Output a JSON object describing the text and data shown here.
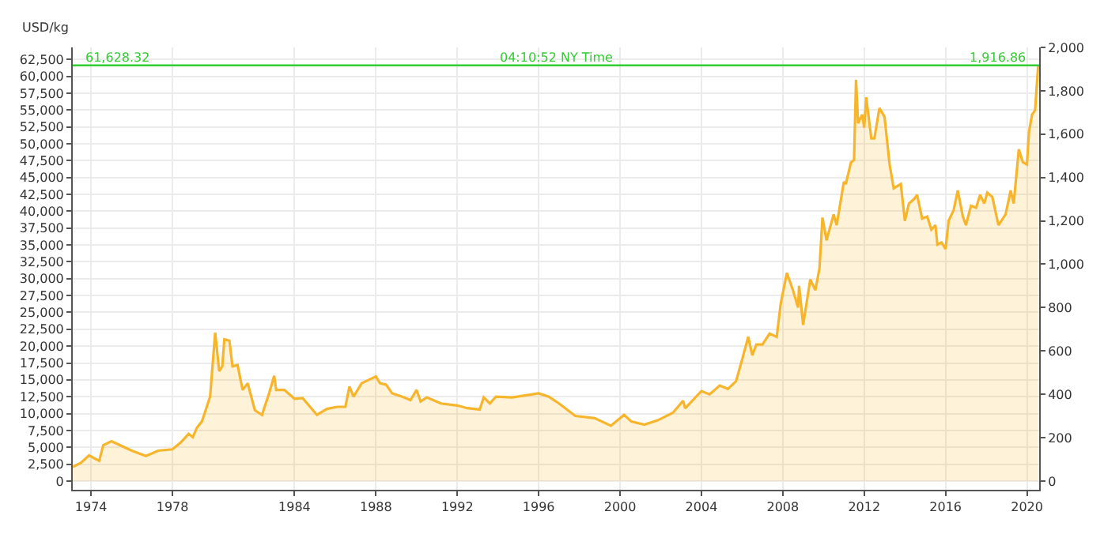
{
  "chart_data": {
    "type": "area",
    "ylabel": "USD/kg",
    "annotations": [
      "04:10:52 NY Time",
      "1,916.86"
    ],
    "x": [
      1973.1,
      1973.5,
      1973.9,
      1974.2,
      1974.4,
      1974.6,
      1974.8,
      1975.0,
      1975.5,
      1976.0,
      1976.7,
      1977.3,
      1978.0,
      1978.4,
      1978.8,
      1979.0,
      1979.2,
      1979.45,
      1979.85,
      1980.1,
      1980.3,
      1980.45,
      1980.55,
      1980.8,
      1980.95,
      1981.2,
      1981.45,
      1981.7,
      1982.05,
      1982.4,
      1982.75,
      1983.0,
      1983.1,
      1983.5,
      1984.0,
      1984.4,
      1985.1,
      1985.6,
      1986.1,
      1986.5,
      1986.7,
      1986.9,
      1987.3,
      1988.0,
      1988.2,
      1988.5,
      1988.8,
      1989.3,
      1989.7,
      1990.0,
      1990.2,
      1990.5,
      1991.2,
      1992.0,
      1992.5,
      1993.1,
      1993.3,
      1993.6,
      1993.9,
      1994.7,
      1996.0,
      1996.5,
      1997.0,
      1997.8,
      1998.75,
      1999.55,
      2000.2,
      2000.55,
      2001.2,
      2001.85,
      2002.6,
      2003.1,
      2003.2,
      2004.0,
      2004.4,
      2004.9,
      2005.3,
      2005.7,
      2006.0,
      2006.3,
      2006.5,
      2006.7,
      2007.0,
      2007.35,
      2007.7,
      2007.9,
      2008.2,
      2008.5,
      2008.75,
      2008.8,
      2009.0,
      2009.35,
      2009.6,
      2009.8,
      2009.95,
      2010.15,
      2010.5,
      2010.65,
      2011.0,
      2011.1,
      2011.35,
      2011.5,
      2011.6,
      2011.7,
      2011.9,
      2012.0,
      2012.1,
      2012.35,
      2012.5,
      2012.75,
      2013.0,
      2013.25,
      2013.45,
      2013.8,
      2014.0,
      2014.2,
      2014.45,
      2014.6,
      2014.85,
      2015.1,
      2015.3,
      2015.5,
      2015.6,
      2015.8,
      2016.0,
      2016.15,
      2016.4,
      2016.6,
      2016.85,
      2017.0,
      2017.25,
      2017.5,
      2017.7,
      2017.9,
      2018.05,
      2018.3,
      2018.6,
      2018.95,
      2019.2,
      2019.35,
      2019.6,
      2019.8,
      2020.0,
      2020.1,
      2020.25,
      2020.4,
      2020.55
    ],
    "series": [
      {
        "color": "#f7b52c",
        "values": [
          2100,
          2700,
          3800,
          3300,
          3000,
          5300,
          5600,
          5900,
          5200,
          4500,
          3700,
          4500,
          4700,
          5700,
          7000,
          6500,
          7900,
          8850,
          12500,
          22000,
          16300,
          17000,
          21000,
          20800,
          17000,
          17200,
          13500,
          14500,
          10500,
          9800,
          13000,
          15600,
          13500,
          13500,
          12200,
          12300,
          9800,
          10700,
          11000,
          11000,
          14000,
          12500,
          14500,
          15500,
          14500,
          14300,
          13000,
          12500,
          12000,
          13500,
          11800,
          12400,
          11500,
          11200,
          10800,
          10600,
          12400,
          11500,
          12500,
          12400,
          13000,
          12500,
          11500,
          9650,
          9320,
          8200,
          9810,
          8840,
          8360,
          9000,
          10130,
          11900,
          10770,
          13340,
          12860,
          14150,
          13660,
          14790,
          18000,
          21380,
          18650,
          20250,
          20250,
          21860,
          21380,
          26360,
          30860,
          28290,
          25720,
          28930,
          23150,
          29900,
          28290,
          31500,
          39060,
          35690,
          39540,
          37940,
          44370,
          44050,
          47260,
          47580,
          59480,
          53050,
          54330,
          52400,
          56900,
          50800,
          50800,
          55300,
          54010,
          46940,
          43400,
          44050,
          38580,
          41150,
          41800,
          42440,
          38900,
          39220,
          37290,
          37940,
          35040,
          35370,
          34400,
          38580,
          40190,
          43080,
          39220,
          37940,
          40830,
          40510,
          42440,
          41150,
          42760,
          42120,
          37940,
          39540,
          43080,
          41150,
          49190,
          47260,
          46940,
          51760,
          54330,
          54980,
          61600
        ]
      }
    ],
    "xlim": [
      1973.1,
      2020.6
    ],
    "xticks": [
      1974,
      1978,
      1984,
      1988,
      1992,
      1996,
      2000,
      2004,
      2008,
      2012,
      2016,
      2020
    ],
    "ylim": [
      -1300,
      64300
    ],
    "yticks": [
      {
        "value": 0,
        "label": "0"
      },
      {
        "value": 2500,
        "label": "2,500"
      },
      {
        "value": 5000,
        "label": "5,000"
      },
      {
        "value": 7500,
        "label": "7,500"
      },
      {
        "value": 10000,
        "label": "10,000"
      },
      {
        "value": 12500,
        "label": "12,500"
      },
      {
        "value": 15000,
        "label": "15,000"
      },
      {
        "value": 17500,
        "label": "17,500"
      },
      {
        "value": 20000,
        "label": "20,000"
      },
      {
        "value": 22500,
        "label": "22,500"
      },
      {
        "value": 25000,
        "label": "25,000"
      },
      {
        "value": 27500,
        "label": "27,500"
      },
      {
        "value": 30000,
        "label": "30,000"
      },
      {
        "value": 32500,
        "label": "32,500"
      },
      {
        "value": 35000,
        "label": "35,000"
      },
      {
        "value": 37500,
        "label": "37,500"
      },
      {
        "value": 40000,
        "label": "40,000"
      },
      {
        "value": 42500,
        "label": "42,500"
      },
      {
        "value": 45000,
        "label": "45,000"
      },
      {
        "value": 47500,
        "label": "47,500"
      },
      {
        "value": 50000,
        "label": "50,000"
      },
      {
        "value": 52500,
        "label": "52,500"
      },
      {
        "value": 55000,
        "label": "55,000"
      },
      {
        "value": 57500,
        "label": "57,500"
      },
      {
        "value": 60000,
        "label": "60,000"
      },
      {
        "value": 62500,
        "label": "62,500"
      }
    ],
    "y2lim": [
      -40.4,
      2000
    ],
    "y2ticks": [
      0,
      200,
      400,
      600,
      800,
      {
        "value": 1000,
        "label": "1,000"
      },
      {
        "value": 1200,
        "label": "1,200"
      },
      {
        "value": 1400,
        "label": "1,400"
      },
      {
        "value": 1600,
        "label": "1,600"
      },
      {
        "value": 1800,
        "label": "1,800"
      },
      {
        "value": 2000,
        "label": "2,000"
      }
    ],
    "ref_lines": [
      {
        "axis": "y",
        "value": 61628.32,
        "label": "61,628.32",
        "color": "#33cc33"
      }
    ],
    "grid": true
  }
}
